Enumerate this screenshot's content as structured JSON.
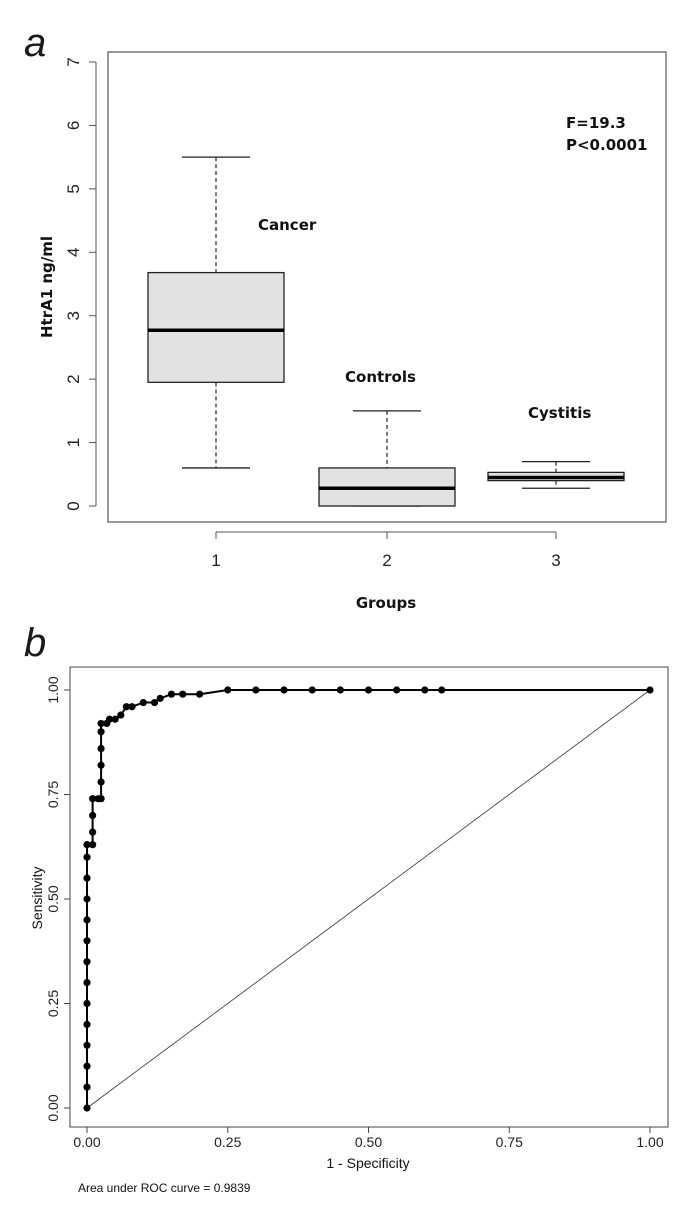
{
  "chart_data": [
    {
      "panel_label": "a",
      "type": "boxplot",
      "xlabel": "Groups",
      "ylabel": "HtrA1 ng/ml",
      "ylim": [
        0,
        7
      ],
      "yticks": [
        "0",
        "1",
        "2",
        "3",
        "4",
        "5",
        "6",
        "7"
      ],
      "categories": [
        "1",
        "2",
        "3"
      ],
      "groups": [
        {
          "name": "Cancer",
          "whisker_low": 0.6,
          "q1": 1.95,
          "median": 2.77,
          "q3": 3.68,
          "whisker_high": 5.5
        },
        {
          "name": "Controls",
          "whisker_low": 0.0,
          "q1": 0.0,
          "median": 0.28,
          "q3": 0.6,
          "whisker_high": 1.5
        },
        {
          "name": "Cystitis",
          "whisker_low": 0.28,
          "q1": 0.4,
          "median": 0.45,
          "q3": 0.53,
          "whisker_high": 0.7
        }
      ],
      "annotations": [
        "F=19.3",
        "P<0.0001"
      ],
      "box_fill": "#e2e2e2",
      "grid": false
    },
    {
      "panel_label": "b",
      "type": "line",
      "xlabel": "1 - Specificity",
      "ylabel": "Sensitivity",
      "xlim": [
        0,
        1
      ],
      "ylim": [
        0,
        1
      ],
      "xticks": [
        "0.00",
        "0.25",
        "0.50",
        "0.75",
        "1.00"
      ],
      "yticks": [
        "0.00",
        "0.25",
        "0.50",
        "0.75",
        "1.00"
      ],
      "series": [
        {
          "points": [
            [
              0.0,
              0.0
            ],
            [
              0.0,
              0.05
            ],
            [
              0.0,
              0.1
            ],
            [
              0.0,
              0.15
            ],
            [
              0.0,
              0.2
            ],
            [
              0.0,
              0.25
            ],
            [
              0.0,
              0.3
            ],
            [
              0.0,
              0.35
            ],
            [
              0.0,
              0.4
            ],
            [
              0.0,
              0.45
            ],
            [
              0.0,
              0.5
            ],
            [
              0.0,
              0.55
            ],
            [
              0.0,
              0.6
            ],
            [
              0.0,
              0.63
            ],
            [
              0.01,
              0.63
            ],
            [
              0.01,
              0.66
            ],
            [
              0.01,
              0.7
            ],
            [
              0.01,
              0.74
            ],
            [
              0.02,
              0.74
            ],
            [
              0.025,
              0.74
            ],
            [
              0.025,
              0.78
            ],
            [
              0.025,
              0.82
            ],
            [
              0.025,
              0.86
            ],
            [
              0.025,
              0.9
            ],
            [
              0.025,
              0.92
            ],
            [
              0.035,
              0.92
            ],
            [
              0.04,
              0.93
            ],
            [
              0.05,
              0.93
            ],
            [
              0.06,
              0.94
            ],
            [
              0.07,
              0.96
            ],
            [
              0.08,
              0.96
            ],
            [
              0.1,
              0.97
            ],
            [
              0.12,
              0.97
            ],
            [
              0.13,
              0.98
            ],
            [
              0.15,
              0.99
            ],
            [
              0.17,
              0.99
            ],
            [
              0.2,
              0.99
            ],
            [
              0.25,
              1.0
            ],
            [
              0.3,
              1.0
            ],
            [
              0.35,
              1.0
            ],
            [
              0.4,
              1.0
            ],
            [
              0.45,
              1.0
            ],
            [
              0.5,
              1.0
            ],
            [
              0.55,
              1.0
            ],
            [
              0.6,
              1.0
            ],
            [
              0.63,
              1.0
            ],
            [
              1.0,
              1.0
            ]
          ]
        }
      ],
      "reference_line": [
        [
          0,
          0
        ],
        [
          1,
          1
        ]
      ],
      "auc_text": "Area under ROC curve = 0.9839",
      "grid": false
    }
  ]
}
